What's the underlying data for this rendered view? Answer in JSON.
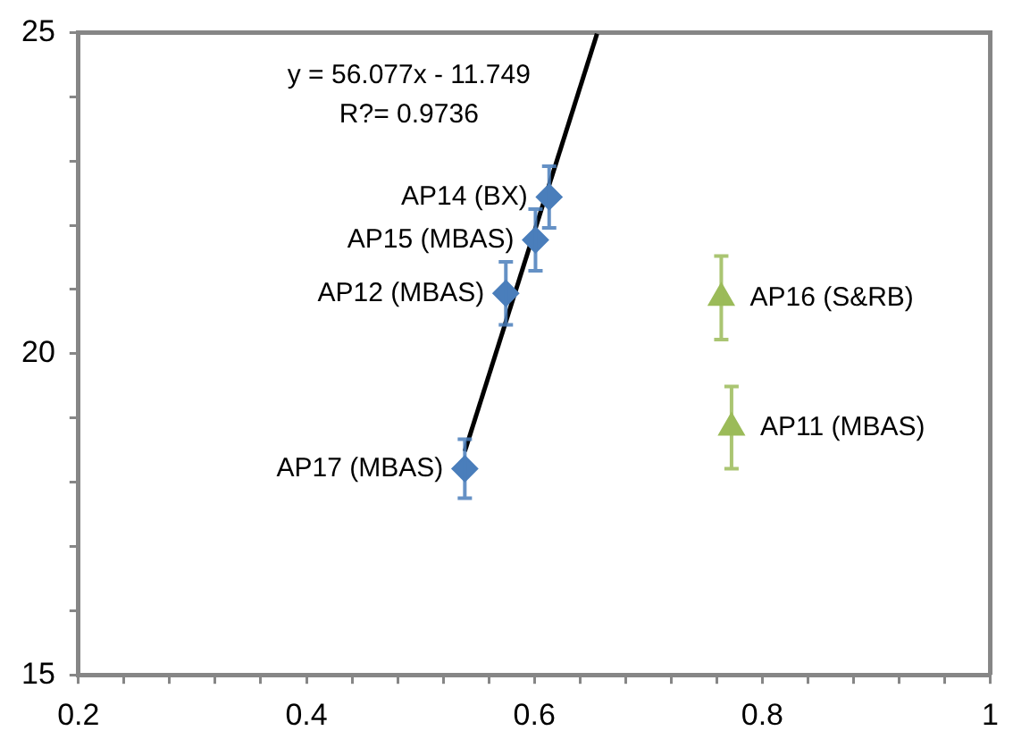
{
  "chart_data": {
    "type": "scatter",
    "xlim": [
      0.2,
      1
    ],
    "xticks": [
      0.2,
      {
        "value": 0.24,
        "label": null
      },
      {
        "value": 0.28,
        "label": null
      },
      {
        "value": 0.32,
        "label": null
      },
      {
        "value": 0.36,
        "label": null
      },
      0.4,
      {
        "value": 0.44,
        "label": null
      },
      {
        "value": 0.48,
        "label": null
      },
      {
        "value": 0.52,
        "label": null
      },
      {
        "value": 0.56,
        "label": null
      },
      0.6,
      {
        "value": 0.64,
        "label": null
      },
      {
        "value": 0.68,
        "label": null
      },
      {
        "value": 0.72,
        "label": null
      },
      {
        "value": 0.76,
        "label": null
      },
      0.8,
      {
        "value": 0.84,
        "label": null
      },
      {
        "value": 0.88,
        "label": null
      },
      {
        "value": 0.92,
        "label": null
      },
      {
        "value": 0.96,
        "label": null
      },
      1
    ],
    "ylim": [
      15,
      25
    ],
    "yticks": [
      15,
      {
        "value": 16,
        "label": null
      },
      {
        "value": 17,
        "label": null
      },
      {
        "value": 18,
        "label": null
      },
      {
        "value": 19,
        "label": null
      },
      20,
      {
        "value": 21,
        "label": null
      },
      {
        "value": 22,
        "label": null
      },
      {
        "value": 23,
        "label": null
      },
      {
        "value": 24,
        "label": null
      },
      25
    ],
    "grid": false,
    "legend": false,
    "series": [
      {
        "color": "#4a7ebb",
        "marker": "diamond",
        "x": [
          0.613,
          0.601,
          0.575,
          0.539
        ],
        "values": [
          22.44,
          21.77,
          20.94,
          18.21
        ],
        "errors": [
          0.48,
          0.48,
          0.49,
          0.46
        ]
      },
      {
        "color": "#9bbb59",
        "marker": "triangle",
        "x": [
          0.764,
          0.773
        ],
        "values": [
          20.87,
          18.85
        ],
        "errors": [
          0.65,
          0.64
        ]
      },
      {
        "type": "line",
        "color": "#000000",
        "marker": "none",
        "x": [
          0.539,
          0.655
        ],
        "values": [
          18.48,
          24.98
        ]
      }
    ],
    "annotations": [
      "y = 56.077x - 11.749",
      "R?= 0.9736",
      {
        "text": "AP14 (BX)",
        "x": 0.613,
        "y": 22.44
      },
      {
        "text": "AP15 (MBAS)",
        "x": 0.601,
        "y": 21.77
      },
      {
        "text": "AP12 (MBAS)",
        "x": 0.575,
        "y": 20.94
      },
      {
        "text": "AP17 (MBAS)",
        "x": 0.539,
        "y": 18.21
      },
      {
        "text": "AP16 (S&RB)",
        "x": 0.764,
        "y": 20.87
      },
      {
        "text": "AP11 (MBAS)",
        "x": 0.773,
        "y": 18.85
      }
    ]
  }
}
